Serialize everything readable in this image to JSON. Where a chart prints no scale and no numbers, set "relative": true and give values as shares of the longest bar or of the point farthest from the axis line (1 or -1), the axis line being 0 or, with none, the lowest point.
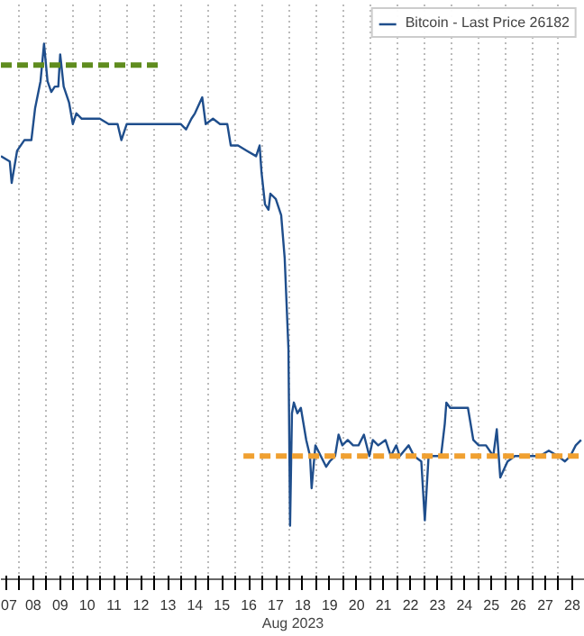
{
  "chart_data": {
    "type": "line",
    "relative": true,
    "xlabel": "Aug 2023",
    "legend": "top right",
    "grid": "x",
    "xlim": [
      7.3,
      28.97
    ],
    "xticks": [
      {
        "value": 7.5,
        "label": "07"
      },
      {
        "value": 8.5,
        "label": "08"
      },
      {
        "value": 9.5,
        "label": "09"
      },
      {
        "value": 10.5,
        "label": "10"
      },
      {
        "value": 11.5,
        "label": "11"
      },
      {
        "value": 12.5,
        "label": "12"
      },
      {
        "value": 13.5,
        "label": "13"
      },
      {
        "value": 14.5,
        "label": "14"
      },
      {
        "value": 15.5,
        "label": "15"
      },
      {
        "value": 16.5,
        "label": "16"
      },
      {
        "value": 17.5,
        "label": "17"
      },
      {
        "value": 18.5,
        "label": "18"
      },
      {
        "value": 19.5,
        "label": "19"
      },
      {
        "value": 20.5,
        "label": "20"
      },
      {
        "value": 21.5,
        "label": "21"
      },
      {
        "value": 22.5,
        "label": "22"
      },
      {
        "value": 23.5,
        "label": "23"
      },
      {
        "value": 24.5,
        "label": "24"
      },
      {
        "value": 25.5,
        "label": "25"
      },
      {
        "value": 26.5,
        "label": "26"
      },
      {
        "value": 27.5,
        "label": "27"
      },
      {
        "value": 28.5,
        "label": "28"
      },
      {
        "value": 8,
        "label": null
      },
      {
        "value": 9,
        "label": null
      },
      {
        "value": 10,
        "label": null
      },
      {
        "value": 11,
        "label": null
      },
      {
        "value": 12,
        "label": null
      },
      {
        "value": 13,
        "label": null
      },
      {
        "value": 14,
        "label": null
      },
      {
        "value": 15,
        "label": null
      },
      {
        "value": 16,
        "label": null
      },
      {
        "value": 17,
        "label": null
      },
      {
        "value": 18,
        "label": null
      },
      {
        "value": 19,
        "label": null
      },
      {
        "value": 20,
        "label": null
      },
      {
        "value": 21,
        "label": null
      },
      {
        "value": 22,
        "label": null
      },
      {
        "value": 23,
        "label": null
      },
      {
        "value": 24,
        "label": null
      },
      {
        "value": 25,
        "label": null
      },
      {
        "value": 26,
        "label": null
      },
      {
        "value": 27,
        "label": null
      },
      {
        "value": 28,
        "label": null
      }
    ],
    "series": [
      {
        "name": "Bitcoin - Last Price 26182",
        "color": "#1f4e8c",
        "line_style": "solid",
        "x": [
          7.3,
          7.63,
          7.7,
          7.9,
          8.17,
          8.43,
          8.57,
          8.77,
          8.9,
          9.03,
          9.17,
          9.3,
          9.43,
          9.5,
          9.63,
          9.83,
          9.97,
          10.1,
          10.3,
          10.63,
          10.97,
          11.3,
          11.63,
          11.77,
          11.97,
          12.3,
          12.63,
          12.97,
          13.3,
          13.63,
          13.97,
          14.17,
          14.37,
          14.5,
          14.77,
          14.9,
          15.17,
          15.43,
          15.7,
          15.83,
          16.1,
          16.43,
          16.77,
          16.9,
          16.97,
          17.1,
          17.23,
          17.3,
          17.5,
          17.7,
          17.83,
          17.97,
          18.03,
          18.1,
          18.17,
          18.3,
          18.43,
          18.63,
          18.77,
          18.83,
          18.97,
          19.17,
          19.37,
          19.5,
          19.7,
          19.83,
          19.97,
          20.17,
          20.37,
          20.57,
          20.77,
          20.97,
          21.1,
          21.3,
          21.57,
          21.77,
          21.97,
          22.1,
          22.43,
          22.63,
          22.9,
          23.03,
          23.17,
          23.43,
          23.63,
          23.77,
          23.83,
          23.97,
          24.17,
          24.43,
          24.63,
          24.83,
          25.03,
          25.3,
          25.57,
          25.7,
          25.83,
          26.1,
          26.37,
          26.63,
          26.97,
          27.3,
          27.63,
          27.97,
          28.23,
          28.43,
          28.63,
          28.83
        ],
        "values": [
          0.79,
          0.78,
          0.74,
          0.8,
          0.82,
          0.82,
          0.88,
          0.93,
          1.0,
          0.93,
          0.91,
          0.92,
          0.92,
          0.98,
          0.92,
          0.89,
          0.85,
          0.87,
          0.86,
          0.86,
          0.86,
          0.85,
          0.85,
          0.82,
          0.85,
          0.85,
          0.85,
          0.85,
          0.85,
          0.85,
          0.85,
          0.84,
          0.86,
          0.87,
          0.9,
          0.85,
          0.86,
          0.85,
          0.85,
          0.81,
          0.81,
          0.8,
          0.79,
          0.81,
          0.76,
          0.7,
          0.69,
          0.72,
          0.71,
          0.68,
          0.6,
          0.43,
          0.1,
          0.31,
          0.33,
          0.31,
          0.32,
          0.26,
          0.23,
          0.17,
          0.25,
          0.23,
          0.21,
          0.22,
          0.23,
          0.27,
          0.25,
          0.26,
          0.25,
          0.25,
          0.27,
          0.23,
          0.26,
          0.25,
          0.26,
          0.23,
          0.25,
          0.23,
          0.25,
          0.23,
          0.22,
          0.11,
          0.23,
          0.23,
          0.23,
          0.29,
          0.33,
          0.32,
          0.32,
          0.32,
          0.32,
          0.26,
          0.25,
          0.25,
          0.23,
          0.28,
          0.19,
          0.22,
          0.23,
          0.23,
          0.23,
          0.23,
          0.24,
          0.23,
          0.22,
          0.23,
          0.25,
          0.26
        ]
      },
      {
        "color": "#5f8c1e",
        "line_style": "dashed",
        "x": [
          7.3,
          13.17
        ],
        "values": [
          0.96,
          0.96
        ]
      },
      {
        "color": "#f0a030",
        "line_style": "dashed",
        "x": [
          16.3,
          28.97
        ],
        "values": [
          0.23,
          0.23
        ]
      }
    ]
  }
}
